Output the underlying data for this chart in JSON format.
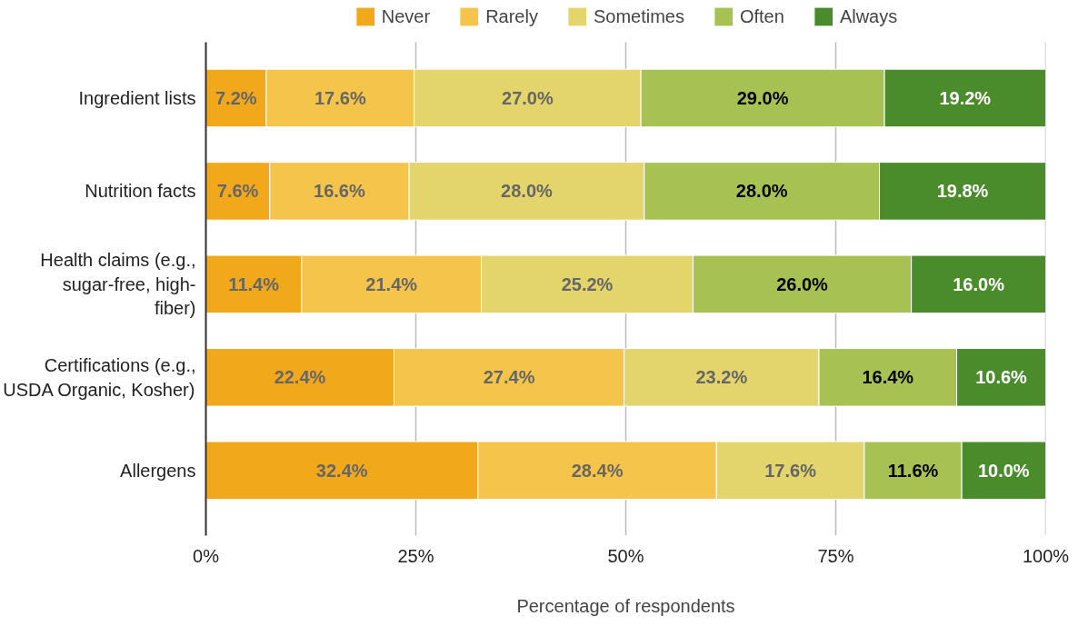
{
  "chart_data": {
    "type": "bar",
    "orientation": "horizontal",
    "stacked": true,
    "categories": [
      "Ingredient lists",
      "Nutrition facts",
      "Health claims (e.g., sugar-free, high-fiber)",
      "Certifications (e.g., USDA Organic, Kosher)",
      "Allergens"
    ],
    "series": [
      {
        "name": "Never",
        "color": "#f1a91b",
        "values": [
          7.2,
          7.6,
          11.4,
          22.4,
          32.4
        ],
        "value_labels": [
          "7.2%",
          "7.6%",
          "11.4%",
          "22.4%",
          "32.4%"
        ]
      },
      {
        "name": "Rarely",
        "color": "#f5c54b",
        "values": [
          17.6,
          16.6,
          21.4,
          27.4,
          28.4
        ],
        "value_labels": [
          "17.6%",
          "16.6%",
          "21.4%",
          "27.4%",
          "28.4%"
        ]
      },
      {
        "name": "Sometimes",
        "color": "#e3d56c",
        "values": [
          27.0,
          28.0,
          25.2,
          23.2,
          17.6
        ],
        "value_labels": [
          "27.0%",
          "28.0%",
          "25.2%",
          "23.2%",
          "17.6%"
        ]
      },
      {
        "name": "Often",
        "color": "#a7c252",
        "values": [
          29.0,
          28.0,
          26.0,
          16.4,
          11.6
        ],
        "value_labels": [
          "29.0%",
          "28.0%",
          "26.0%",
          "16.4%",
          "11.6%"
        ]
      },
      {
        "name": "Always",
        "color": "#4a8c2b",
        "values": [
          19.2,
          19.8,
          16.0,
          10.6,
          10.0
        ],
        "value_labels": [
          "19.2%",
          "19.8%",
          "16.0%",
          "10.6%",
          "10.0%"
        ]
      }
    ],
    "xlabel": "Percentage of respondents",
    "xlim": [
      0,
      100
    ],
    "xticks": [
      {
        "value": 0,
        "label": "0%"
      },
      {
        "value": 25,
        "label": "25%"
      },
      {
        "value": 50,
        "label": "50%"
      },
      {
        "value": 75,
        "label": "75%"
      },
      {
        "value": 100,
        "label": "100%"
      }
    ],
    "grid": "x",
    "legend": "top"
  }
}
